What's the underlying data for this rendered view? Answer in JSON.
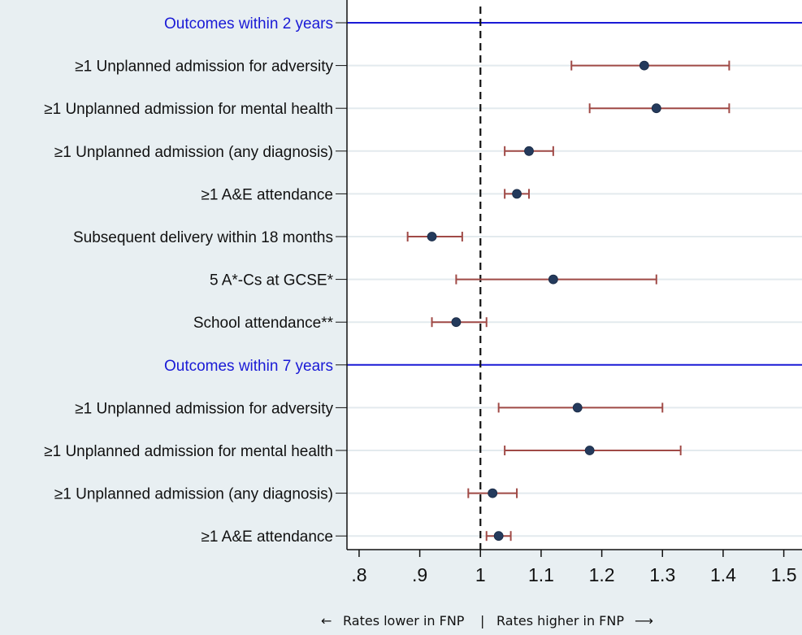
{
  "chart_data": {
    "type": "scatter",
    "subtype": "forest-plot",
    "title": "",
    "xlabel": "",
    "xlim": [
      0.78,
      1.53
    ],
    "x_ticks": [
      0.8,
      0.9,
      1.0,
      1.1,
      1.2,
      1.3,
      1.4,
      1.5
    ],
    "x_tick_labels": [
      ".8",
      ".9",
      "1",
      "1.1",
      "1.2",
      "1.3",
      "1.4",
      "1.5"
    ],
    "reference_line": 1.0,
    "grid": true,
    "groups": [
      {
        "label": "Outcomes within 2 years",
        "rows": [
          {
            "label": "≥1 Unplanned admission for adversity",
            "estimate": 1.27,
            "lower": 1.15,
            "upper": 1.41
          },
          {
            "label": "≥1 Unplanned admission for mental health",
            "estimate": 1.29,
            "lower": 1.18,
            "upper": 1.41
          },
          {
            "label": "≥1 Unplanned admission (any diagnosis)",
            "estimate": 1.08,
            "lower": 1.04,
            "upper": 1.12
          },
          {
            "label": "≥1 A&E attendance",
            "estimate": 1.06,
            "lower": 1.04,
            "upper": 1.08
          },
          {
            "label": "Subsequent delivery within 18 months",
            "estimate": 0.92,
            "lower": 0.88,
            "upper": 0.97
          },
          {
            "label": "5 A*-Cs at GCSE*",
            "estimate": 1.12,
            "lower": 0.96,
            "upper": 1.29
          },
          {
            "label": "School attendance**",
            "estimate": 0.96,
            "lower": 0.92,
            "upper": 1.01
          }
        ]
      },
      {
        "label": "Outcomes within 7 years",
        "rows": [
          {
            "label": "≥1 Unplanned admission for adversity",
            "estimate": 1.16,
            "lower": 1.03,
            "upper": 1.3
          },
          {
            "label": "≥1 Unplanned admission for mental health",
            "estimate": 1.18,
            "lower": 1.04,
            "upper": 1.33
          },
          {
            "label": "≥1 Unplanned admission (any diagnosis)",
            "estimate": 1.02,
            "lower": 0.98,
            "upper": 1.06
          },
          {
            "label": "≥1 A&E attendance",
            "estimate": 1.03,
            "lower": 1.01,
            "upper": 1.05
          }
        ]
      }
    ],
    "footer": {
      "left_arrow": "←",
      "left_text": "Rates lower in FNP",
      "separator": "|",
      "right_text": "Rates higher in FNP",
      "right_arrow": "⟶"
    },
    "colors": {
      "background": "#e8eff2",
      "plot_background": "#ffffff",
      "gridline": "#e3eaee",
      "group_label": "#1a1ad6",
      "group_line": "#1a1ad6",
      "ci_line": "#a04a46",
      "marker_fill": "#243a5c",
      "reference_line": "#111111",
      "axis": "#111111"
    }
  }
}
